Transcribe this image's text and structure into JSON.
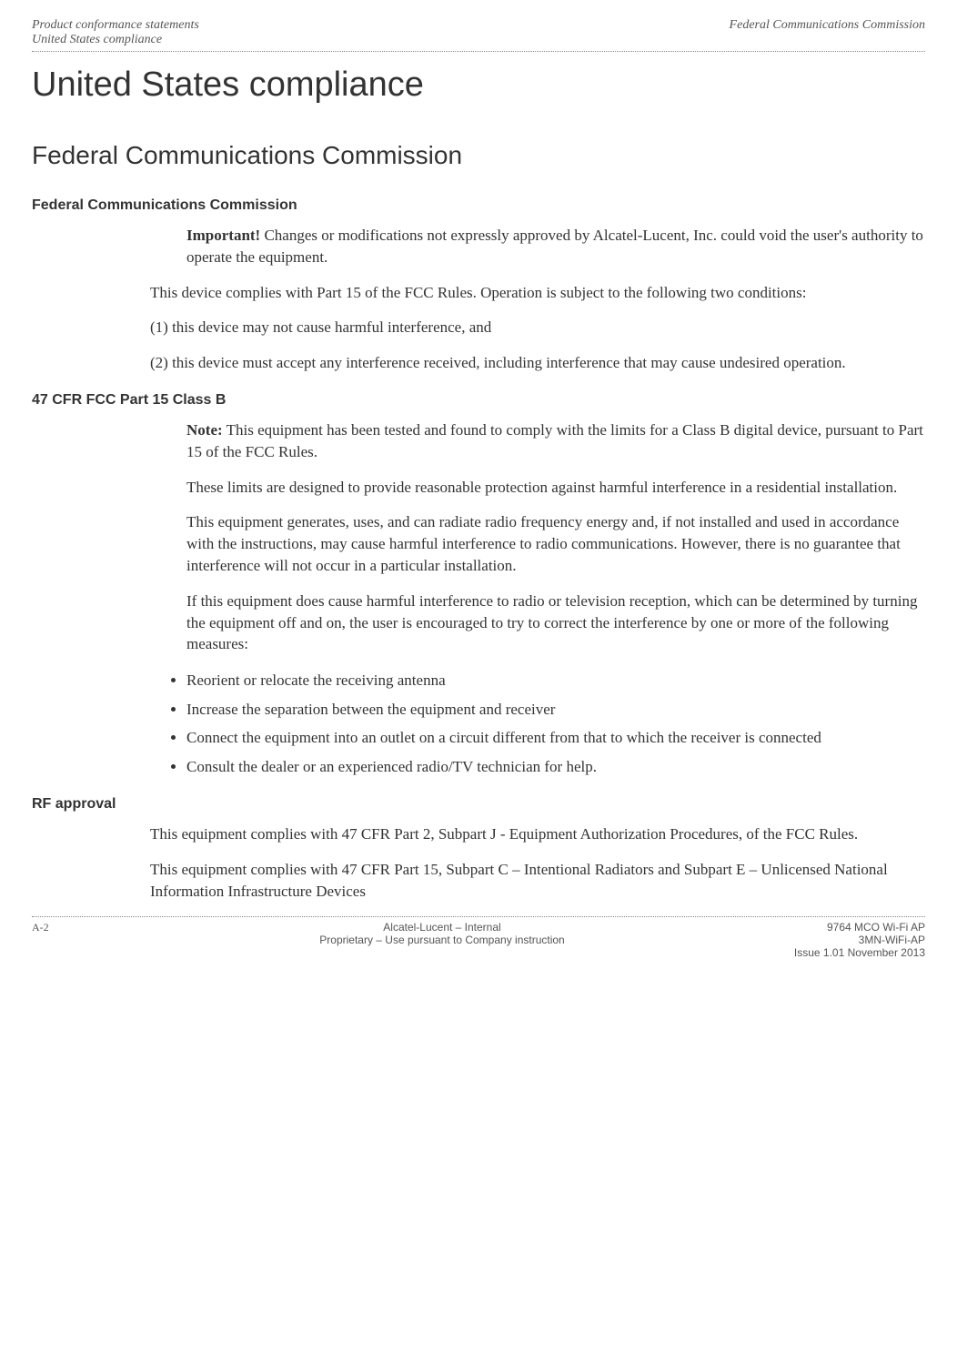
{
  "header": {
    "left_line1": "Product conformance statements",
    "left_line2": "United States compliance",
    "right_line1": "Federal Communications Commission"
  },
  "main_title": "United States compliance",
  "section_title": "Federal Communications Commission",
  "fcc_section": {
    "title": "Federal Communications Commission",
    "important_label": "Important!",
    "important_text": " Changes or modifications not expressly approved by Alcatel-Lucent, Inc. could void the user's authority to operate the equipment.",
    "para1": "This device complies with Part 15 of the FCC Rules. Operation is subject to the following two conditions:",
    "para2": "(1) this device may not cause harmful interference, and",
    "para3": "(2) this device must accept any interference received, including interference that may cause undesired operation."
  },
  "cfr_section": {
    "title": "47 CFR FCC Part 15 Class B",
    "note_label": "Note:",
    "note_text": " This equipment has been tested and found to comply with the limits for a Class B digital device, pursuant to Part 15 of the FCC Rules.",
    "para1": "These limits are designed to provide reasonable protection against harmful interference in a residential installation.",
    "para2": "This equipment generates, uses, and can radiate radio frequency energy and, if not installed and used in accordance with the instructions, may cause harmful interference to radio communications. However, there is no guarantee that interference will not occur in a particular installation.",
    "para3": "If this equipment does cause harmful interference to radio or television reception, which can be determined by turning the equipment off and on, the user is encouraged to try to correct the interference by one or more of the following measures:",
    "bullets": [
      "Reorient or relocate the receiving antenna",
      "Increase the separation between the equipment and receiver",
      "Connect the equipment into an outlet on a circuit different from that to which the receiver is connected",
      "Consult the dealer or an experienced radio/TV technician for help."
    ]
  },
  "rf_section": {
    "title": "RF approval",
    "para1": "This equipment complies with 47 CFR Part 2, Subpart J - Equipment Authorization Procedures, of the FCC Rules.",
    "para2": "This equipment complies with 47 CFR Part 15, Subpart C – Intentional Radiators and Subpart E – Unlicensed National Information Infrastructure Devices"
  },
  "footer": {
    "page_num": "A-2",
    "center_line1": "Alcatel-Lucent – Internal",
    "center_line2": "Proprietary – Use pursuant to Company instruction",
    "right_line1": "9764 MCO Wi-Fi AP",
    "right_line2": "3MN-WiFi-AP",
    "right_line3": "Issue 1.01   November 2013"
  }
}
